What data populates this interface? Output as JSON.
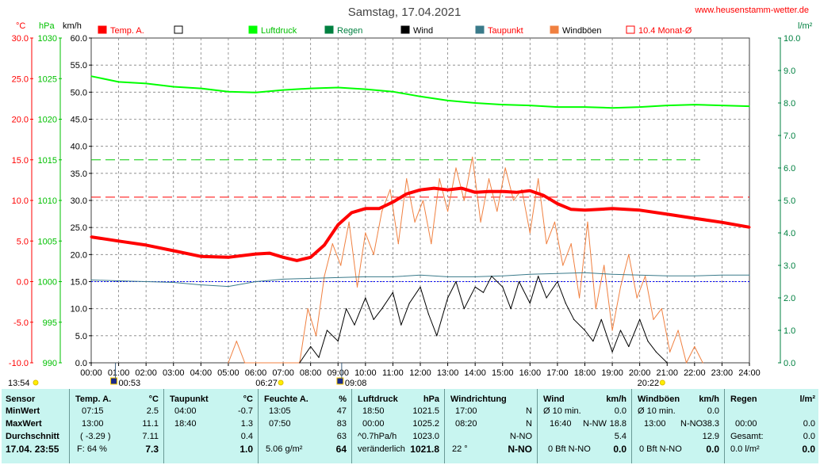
{
  "title": "Samstag, 17.04.2021",
  "site_url": "www.heusenstamm-wetter.de",
  "colors": {
    "temp": "#ff0000",
    "pressure": "#00ff00",
    "rain": "#008040",
    "wind": "#000000",
    "dewpoint": "#3a7a8a",
    "gust": "#f08040",
    "monthly": "#ff0000",
    "background": "#ffffff",
    "grid": "#808080",
    "stats_bg": "#c8f5f0"
  },
  "axis_units": {
    "temp": "°C",
    "pressure": "hPa",
    "wind": "km/h",
    "rain": "l/m²"
  },
  "legend": [
    {
      "label": "Temp. A.",
      "swatch": "filled",
      "color": "#ff0000",
      "text_color": "#ff0000"
    },
    {
      "label": "",
      "swatch": "empty",
      "color": "#000000",
      "text_color": "#000000"
    },
    {
      "label": "Luftdruck",
      "swatch": "filled",
      "color": "#00ff00",
      "text_color": "#00c000"
    },
    {
      "label": "Regen",
      "swatch": "filled",
      "color": "#008040",
      "text_color": "#008040"
    },
    {
      "label": "Wind",
      "swatch": "filled",
      "color": "#000000",
      "text_color": "#000000"
    },
    {
      "label": "Taupunkt",
      "swatch": "filled",
      "color": "#3a7a8a",
      "text_color": "#ff0000"
    },
    {
      "label": "Windböen",
      "swatch": "filled",
      "color": "#f08040",
      "text_color": "#000000"
    },
    {
      "label": "10.4 Monat-Ø",
      "swatch": "empty",
      "color": "#ff0000",
      "text_color": "#ff0000"
    }
  ],
  "sun_markers": {
    "sunrise": "06:27",
    "sunset": "20:22"
  },
  "moon_markers": {
    "moonrise": "00:53",
    "moonset": "09:08"
  },
  "clock_times": {
    "left": "13:54"
  },
  "chart_data": {
    "type": "line",
    "x_unit": "hours",
    "x_ticks": [
      "00:00",
      "01:00",
      "02:00",
      "03:00",
      "04:00",
      "05:00",
      "06:00",
      "07:00",
      "08:00",
      "09:00",
      "10:00",
      "11:00",
      "12:00",
      "13:00",
      "14:00",
      "15:00",
      "16:00",
      "17:00",
      "18:00",
      "19:00",
      "20:00",
      "21:00",
      "22:00",
      "23:00",
      "24:00"
    ],
    "xlim": [
      0,
      24
    ],
    "temp_axis": {
      "ticks": [
        "30.0",
        "25.0",
        "20.0",
        "15.0",
        "10.0",
        "5.0",
        "0.0",
        "-5.0",
        "-10.0"
      ],
      "ylim": [
        -10,
        30
      ]
    },
    "pressure_axis": {
      "ticks": [
        "1030",
        "1025",
        "1020",
        "1015",
        "1010",
        "1005",
        "1000",
        "995",
        "990"
      ],
      "ylim": [
        990,
        1030
      ]
    },
    "wind_axis": {
      "ticks": [
        "60.0",
        "55.0",
        "50.0",
        "45.0",
        "40.0",
        "35.0",
        "30.0",
        "25.0",
        "20.0",
        "15.0",
        "10.0",
        "5.0",
        "0.0"
      ],
      "ylim": [
        0,
        60
      ]
    },
    "rain_axis": {
      "ticks": [
        "10.0",
        "9.0",
        "8.0",
        "7.0",
        "6.0",
        "5.0",
        "4.0",
        "3.0",
        "2.0",
        "1.0",
        "0.0"
      ],
      "ylim": [
        0,
        10
      ]
    },
    "reference_lines": [
      {
        "name": "10.4 Monat-Ø",
        "axis": "temp",
        "value": 10.4,
        "color": "#ff0000"
      },
      {
        "axis": "temp",
        "value": 0,
        "color": "#0000ff"
      },
      {
        "axis": "pressure",
        "value": 1015,
        "color": "#00cc00"
      }
    ],
    "series": [
      {
        "name": "Temp. A.",
        "axis": "temp",
        "color": "#ff0000",
        "x": [
          0,
          1,
          2,
          3,
          4,
          5,
          6,
          6.5,
          7,
          7.5,
          8,
          8.5,
          9,
          9.5,
          10,
          10.5,
          11,
          11.5,
          12,
          12.5,
          13,
          13.5,
          14,
          14.5,
          15,
          15.5,
          16,
          16.5,
          17,
          17.5,
          18,
          19,
          20,
          21,
          22,
          23,
          24
        ],
        "y": [
          5.5,
          5,
          4.5,
          3.8,
          3.1,
          3,
          3.4,
          3.5,
          3,
          2.6,
          3,
          4.5,
          7,
          8.5,
          9,
          9,
          9.8,
          10.8,
          11.3,
          11.5,
          11.3,
          11.5,
          11,
          11.1,
          11.1,
          11,
          11.2,
          10.6,
          9.6,
          8.9,
          8.8,
          9,
          8.8,
          8.3,
          7.8,
          7.3,
          6.7
        ]
      },
      {
        "name": "Luftdruck",
        "axis": "pressure",
        "color": "#00ff00",
        "x": [
          0,
          1,
          2,
          3,
          4,
          5,
          6,
          7,
          8,
          9,
          10,
          11,
          12,
          13,
          14,
          15,
          16,
          17,
          18,
          19,
          20,
          21,
          22,
          23,
          24
        ],
        "y": [
          1025.3,
          1024.6,
          1024.4,
          1024.0,
          1023.8,
          1023.4,
          1023.3,
          1023.6,
          1023.8,
          1023.9,
          1023.7,
          1023.4,
          1022.8,
          1022.3,
          1022.0,
          1021.8,
          1021.7,
          1021.5,
          1021.5,
          1021.4,
          1021.5,
          1021.7,
          1021.8,
          1021.7,
          1021.6
        ]
      },
      {
        "name": "Taupunkt",
        "axis": "temp",
        "color": "#3a7a8a",
        "x": [
          0,
          1,
          2,
          3,
          4,
          5,
          6,
          7,
          8,
          9,
          10,
          11,
          12,
          13,
          14,
          15,
          16,
          17,
          18,
          19,
          20,
          21,
          22,
          23,
          24
        ],
        "y": [
          0.2,
          0.1,
          0,
          -0.1,
          -0.4,
          -0.6,
          0,
          0.3,
          0.4,
          0.5,
          0.6,
          0.6,
          0.8,
          0.6,
          0.6,
          0.7,
          0.9,
          1.0,
          1.1,
          0.9,
          0.8,
          0.7,
          0.7,
          0.8,
          0.8
        ]
      },
      {
        "name": "Wind",
        "axis": "wind",
        "color": "#000000",
        "x": [
          7.6,
          8,
          8.3,
          8.6,
          9,
          9.3,
          9.6,
          10,
          10.3,
          10.6,
          11,
          11.3,
          11.6,
          12,
          12.3,
          12.6,
          13,
          13.3,
          13.6,
          14,
          14.3,
          14.6,
          15,
          15.3,
          15.6,
          16,
          16.3,
          16.6,
          17,
          17.3,
          17.6,
          18,
          18.3,
          18.6,
          19,
          19.3,
          19.6,
          20,
          20.3,
          20.6,
          21
        ],
        "y": [
          0,
          3,
          1,
          6,
          4,
          10,
          7,
          12,
          8,
          10,
          13,
          7,
          11,
          14,
          9,
          5,
          12,
          15,
          10,
          14,
          13,
          16,
          14,
          10,
          15,
          11,
          16,
          12,
          15,
          11,
          8,
          6,
          4,
          8,
          2,
          6,
          3,
          8,
          4,
          2,
          0
        ]
      },
      {
        "name": "Windböen",
        "axis": "wind",
        "color": "#f08040",
        "x": [
          5,
          5.3,
          5.6,
          7.6,
          7.9,
          8.2,
          8.5,
          8.8,
          9.1,
          9.4,
          9.7,
          10,
          10.3,
          10.6,
          10.9,
          11.2,
          11.5,
          11.8,
          12.1,
          12.4,
          12.7,
          13,
          13.3,
          13.6,
          13.9,
          14.2,
          14.5,
          14.8,
          15.1,
          15.4,
          15.7,
          16,
          16.3,
          16.6,
          16.9,
          17.2,
          17.5,
          17.8,
          18.1,
          18.4,
          18.7,
          19,
          19.3,
          19.6,
          19.9,
          20.2,
          20.5,
          20.8,
          21.1,
          21.4,
          21.7,
          22,
          22.3
        ],
        "y": [
          0,
          4,
          0,
          0,
          10,
          5,
          16,
          22,
          18,
          26,
          14,
          24,
          20,
          28,
          32,
          22,
          34,
          26,
          30,
          22,
          34,
          28,
          36,
          30,
          38,
          26,
          34,
          28,
          36,
          30,
          32,
          24,
          34,
          22,
          26,
          18,
          22,
          12,
          26,
          10,
          18,
          6,
          14,
          20,
          12,
          16,
          8,
          10,
          2,
          6,
          0,
          3,
          0
        ]
      }
    ]
  },
  "stats": {
    "labels": {
      "sensor": "Sensor",
      "min": "MinWert",
      "max": "MaxWert",
      "avg": "Durchschnitt",
      "now": "17.04. 23:55"
    },
    "temp": {
      "header": "Temp. A.",
      "unit": "°C",
      "min_time": "07:15",
      "min": "2.5",
      "max_time": "13:00",
      "max": "11.1",
      "avg_note": "( -3.29 )",
      "avg": "7.11",
      "feel": "F: 64 %",
      "now": "7.3"
    },
    "dew": {
      "header": "Taupunkt",
      "unit": "°C",
      "min_time": "04:00",
      "min": "-0.7",
      "max_time": "18:40",
      "max": "1.3",
      "avg": "0.4",
      "now": "1.0"
    },
    "hum": {
      "header": "Feuchte A.",
      "unit": "%",
      "min_time": "13:05",
      "min": "47",
      "max_time": "07:50",
      "max": "83",
      "avg": "63",
      "abs": "5.06 g/m²",
      "now": "64"
    },
    "press": {
      "header": "Luftdruck",
      "unit": "hPa",
      "min_time": "18:50",
      "min": "1021.5",
      "max_time": "00:00",
      "max": "1025.2",
      "trend": "^0.7hPa/h",
      "avg": "1023.0",
      "change": "veränderlich",
      "now": "1021.8"
    },
    "dir": {
      "header": "Windrichtung",
      "min_time": "17:00",
      "min": "N",
      "max_time": "08:20",
      "max": "N",
      "avg": "N-NO",
      "deg": "22 °",
      "now": "N-NO"
    },
    "wind": {
      "header": "Wind",
      "unit": "km/h",
      "ten": "Ø 10 min.",
      "ten_val": "0.0",
      "max_time": "16:40",
      "max_dir": "N-NW",
      "max": "18.8",
      "avg": "5.4",
      "bft": "0 Bft N-NO",
      "now": "0.0"
    },
    "gust": {
      "header": "Windböen",
      "unit": "km/h",
      "ten": "Ø 10 min.",
      "ten_val": "0.0",
      "max_time": "13:00",
      "max_dir": "N-NO",
      "max": "38.3",
      "avg": "12.9",
      "bft": "0 Bft N-NO",
      "now": "0.0"
    },
    "rain": {
      "header": "Regen",
      "unit": "l/m²",
      "max_time": "00:00",
      "max": "0.0",
      "total_label": "Gesamt:",
      "total": "0.0",
      "now_label": "0.0 l/m²",
      "now": "0.0"
    }
  }
}
